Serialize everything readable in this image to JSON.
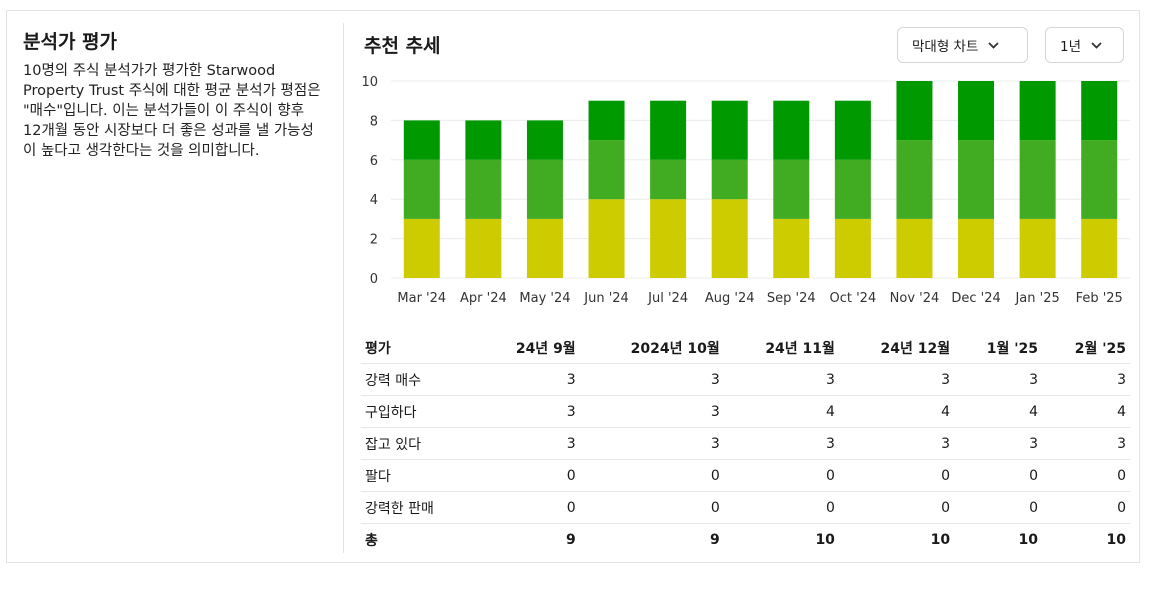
{
  "left": {
    "title": "분석가 평가",
    "description": "10명의 주식 분석가가 평가한 Starwood Property Trust 주식에 대한 평균 분석가 평점은 \"매수\"입니다. 이는 분석가들이 이 주식이 향후 12개월 동안 시장보다 더 좋은 성과를 낼 가능성이 높다고 생각한다는 것을 의미합니다."
  },
  "right": {
    "title": "추천 추세",
    "chart_type_select": "막대형 차트",
    "period_select": "1년"
  },
  "colors": {
    "strong_buy": "#009900",
    "buy": "#41ac21",
    "hold": "#cccc00"
  },
  "chart_data": {
    "type": "bar",
    "stacked": true,
    "categories": [
      "Mar '24",
      "Apr '24",
      "May '24",
      "Jun '24",
      "Jul '24",
      "Aug '24",
      "Sep '24",
      "Oct '24",
      "Nov '24",
      "Dec '24",
      "Jan '25",
      "Feb '25"
    ],
    "series": [
      {
        "key": "hold",
        "values": [
          3,
          3,
          3,
          4,
          4,
          4,
          3,
          3,
          3,
          3,
          3,
          3
        ]
      },
      {
        "key": "buy",
        "values": [
          3,
          3,
          3,
          3,
          2,
          2,
          3,
          3,
          4,
          4,
          4,
          4
        ]
      },
      {
        "key": "strong_buy",
        "values": [
          2,
          2,
          2,
          2,
          3,
          3,
          3,
          3,
          3,
          3,
          3,
          3
        ]
      }
    ],
    "yticks": [
      0,
      2,
      4,
      6,
      8,
      10
    ],
    "ylim": [
      0,
      10
    ],
    "grid": true
  },
  "table": {
    "headers": [
      "평가",
      "24년 9월",
      "2024년 10월",
      "24년 11월",
      "24년 12월",
      "1월 '25",
      "2월 '25"
    ],
    "rows": [
      [
        "강력 매수",
        "3",
        "3",
        "3",
        "3",
        "3",
        "3"
      ],
      [
        "구입하다",
        "3",
        "3",
        "4",
        "4",
        "4",
        "4"
      ],
      [
        "잡고 있다",
        "3",
        "3",
        "3",
        "3",
        "3",
        "3"
      ],
      [
        "팔다",
        "0",
        "0",
        "0",
        "0",
        "0",
        "0"
      ],
      [
        "강력한 판매",
        "0",
        "0",
        "0",
        "0",
        "0",
        "0"
      ]
    ],
    "total": [
      "총",
      "9",
      "9",
      "10",
      "10",
      "10",
      "10"
    ]
  }
}
